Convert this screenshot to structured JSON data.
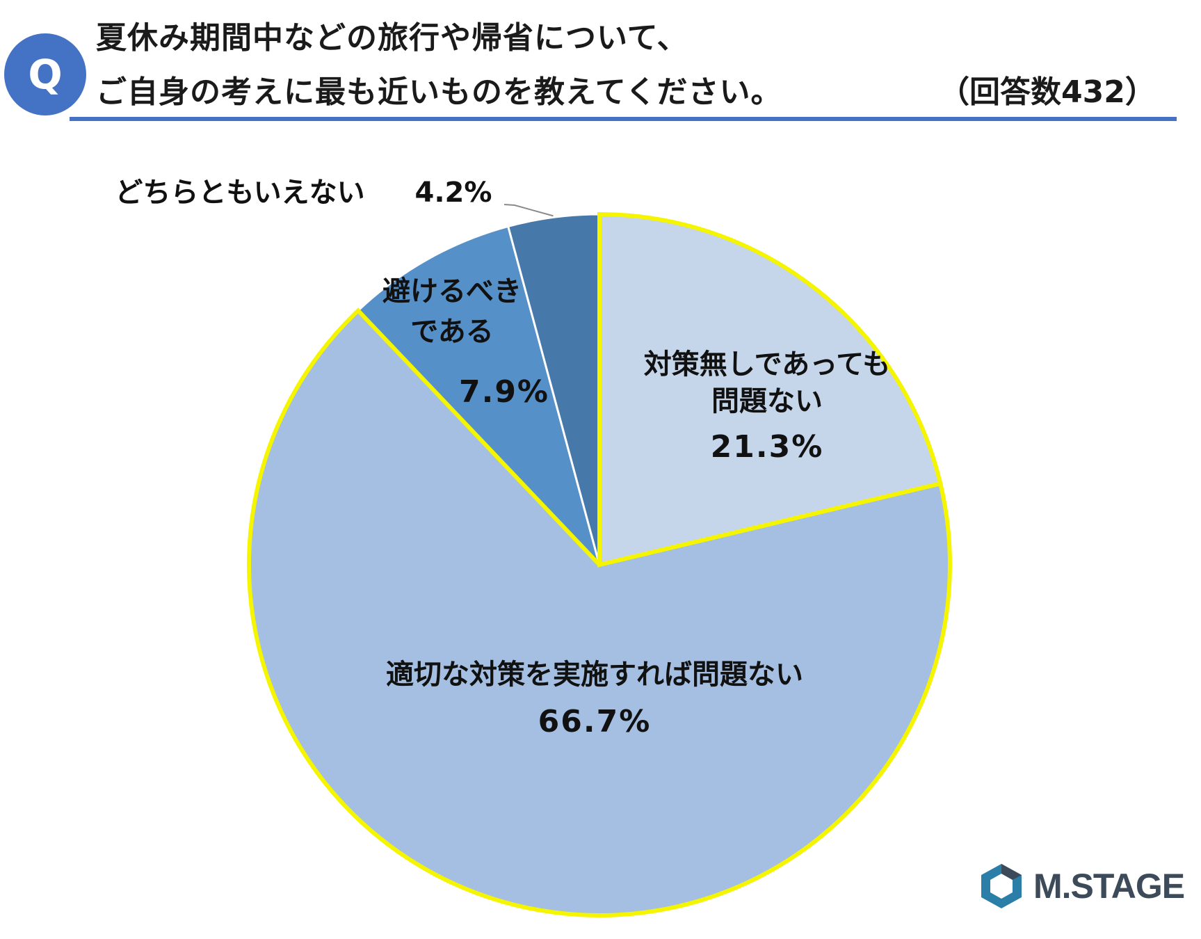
{
  "header": {
    "badge": "Q",
    "title_line1": "夏休み期間中などの旅行や帰省について、",
    "title_line2": "ご自身の考えに最も近いものを教えてください。",
    "response_count": "（回答数432）"
  },
  "chart_data": {
    "type": "pie",
    "start_angle_deg": 0,
    "direction": "clockwise",
    "slices": [
      {
        "label": "対策無しであっても問題ない",
        "label_lines": [
          "対策無しであっても",
          "問題ない"
        ],
        "value": 21.3,
        "value_label": "21.3%",
        "color": "#c5d5ea",
        "highlight": true
      },
      {
        "label": "適切な対策を実施すれば問題ない",
        "label_lines": [
          "適切な対策を実施すれば問題ない"
        ],
        "value": 66.7,
        "value_label": "66.7%",
        "color": "#a4bfe1",
        "highlight": true
      },
      {
        "label": "避けるべきである",
        "label_lines": [
          "避けるべき",
          "である"
        ],
        "value": 7.9,
        "value_label": "7.9%",
        "color": "#5690c8",
        "highlight": false
      },
      {
        "label": "どちらともいえない",
        "label_lines": [
          "どちらともいえない"
        ],
        "value": 4.2,
        "value_label": "4.2%",
        "color": "#4679aa",
        "highlight": false
      }
    ],
    "highlight_color": "#f5f500"
  },
  "logo": {
    "text": "M.STAGE",
    "icon": "hexagon-logo-icon",
    "color": "#3c4a59",
    "accent": "#2a7ea8"
  }
}
